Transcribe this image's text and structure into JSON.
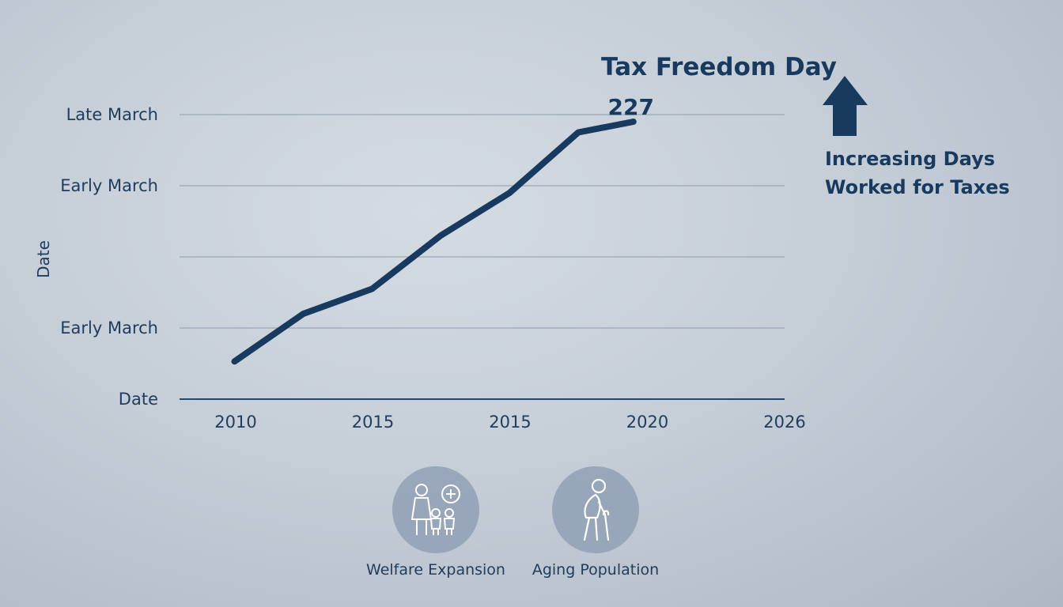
{
  "chart_data": {
    "type": "line",
    "title": "Tax Freedom Day",
    "ylabel": "Date",
    "x_tick_labels": [
      "2010",
      "2015",
      "2015",
      "2020",
      "2026"
    ],
    "y_tick_labels": [
      {
        "label": "Date",
        "level": 0
      },
      {
        "label": "Early March",
        "level": 1
      },
      {
        "label": "Early March",
        "level": 3
      },
      {
        "label": "Late March",
        "level": 4
      }
    ],
    "ylim": [
      0,
      4
    ],
    "xlim": [
      2008,
      2030
    ],
    "grid": true,
    "series": [
      {
        "x": [
          2010,
          2012.5,
          2015,
          2017.5,
          2020,
          2022.5,
          2024.5
        ],
        "y": [
          0.53,
          1.2,
          1.55,
          2.3,
          2.9,
          3.75,
          3.75
        ]
      }
    ],
    "point_label": {
      "text": "227",
      "x": 2024.5
    },
    "annotation": "Increasing Days Worked for Taxes",
    "arrow_direction": "up",
    "color": "#183a5e"
  },
  "factors": [
    {
      "label": "Welfare Expansion",
      "icon": "family-plus-icon"
    },
    {
      "label": "Aging Population",
      "icon": "elderly-person-icon"
    }
  ]
}
